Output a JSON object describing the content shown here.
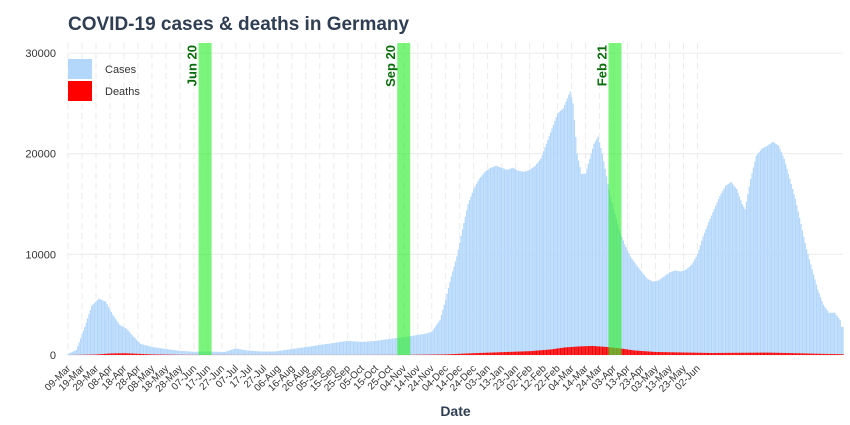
{
  "chart_data": {
    "type": "bar",
    "title": "COVID-19 cases & deaths in Germany",
    "xlabel": "Date",
    "ylabel": "",
    "ylim": [
      0,
      31000
    ],
    "y_ticks": [
      0,
      10000,
      20000,
      30000
    ],
    "x_ticks": [
      "09-Mar",
      "19-Mar",
      "29-Mar",
      "08-Apr",
      "18-Apr",
      "28-Apr",
      "08-May",
      "18-May",
      "28-May",
      "07-Jun",
      "17-Jun",
      "27-Jun",
      "07-Jul",
      "17-Jul",
      "27-Jul",
      "06-Aug",
      "16-Aug",
      "26-Aug",
      "05-Sep",
      "15-Sep",
      "25-Sep",
      "05-Oct",
      "15-Oct",
      "25-Oct",
      "04-Nov",
      "14-Nov",
      "24-Nov",
      "04-Dec",
      "14-Dec",
      "24-Dec",
      "03-Jan",
      "13-Jan",
      "23-Jan",
      "02-Feb",
      "12-Feb",
      "22-Feb",
      "04-Mar",
      "14-Mar",
      "24-Mar",
      "03-Apr",
      "13-Apr",
      "23-Apr",
      "03-May",
      "13-May",
      "23-May",
      "02-Jun"
    ],
    "start_label": "09-Mar",
    "grid": true,
    "legend_position": "top-left",
    "legend": [
      {
        "name": "Cases",
        "color": "#b3d7fb"
      },
      {
        "name": "Deaths",
        "color": "#ff0000"
      }
    ],
    "series": [
      {
        "name": "Cases",
        "color": "#b3d7fb",
        "keypoints": [
          [
            0,
            100
          ],
          [
            6,
            500
          ],
          [
            12,
            2800
          ],
          [
            17,
            4900
          ],
          [
            22,
            5600
          ],
          [
            27,
            5300
          ],
          [
            32,
            4000
          ],
          [
            37,
            3000
          ],
          [
            42,
            2600
          ],
          [
            47,
            1800
          ],
          [
            52,
            1100
          ],
          [
            60,
            800
          ],
          [
            70,
            600
          ],
          [
            80,
            420
          ],
          [
            90,
            320
          ],
          [
            100,
            350
          ],
          [
            112,
            300
          ],
          [
            120,
            650
          ],
          [
            128,
            450
          ],
          [
            138,
            350
          ],
          [
            148,
            350
          ],
          [
            158,
            550
          ],
          [
            168,
            750
          ],
          [
            178,
            950
          ],
          [
            190,
            1200
          ],
          [
            200,
            1400
          ],
          [
            210,
            1300
          ],
          [
            220,
            1400
          ],
          [
            230,
            1600
          ],
          [
            236,
            1700
          ],
          [
            242,
            1800
          ],
          [
            250,
            2000
          ],
          [
            255,
            2100
          ],
          [
            260,
            2300
          ],
          [
            266,
            3500
          ],
          [
            270,
            5500
          ],
          [
            274,
            7800
          ],
          [
            278,
            9800
          ],
          [
            282,
            12500
          ],
          [
            286,
            15000
          ],
          [
            290,
            16500
          ],
          [
            294,
            17500
          ],
          [
            298,
            18200
          ],
          [
            302,
            18600
          ],
          [
            306,
            18800
          ],
          [
            310,
            18600
          ],
          [
            314,
            18400
          ],
          [
            318,
            18600
          ],
          [
            322,
            18300
          ],
          [
            326,
            18200
          ],
          [
            330,
            18400
          ],
          [
            334,
            18800
          ],
          [
            338,
            19500
          ],
          [
            342,
            21000
          ],
          [
            346,
            22500
          ],
          [
            350,
            24000
          ],
          [
            354,
            24500
          ],
          [
            357,
            25500
          ],
          [
            359,
            26200
          ],
          [
            361,
            25000
          ],
          [
            364,
            20000
          ],
          [
            367,
            18000
          ],
          [
            370,
            18000
          ],
          [
            373,
            19500
          ],
          [
            376,
            21000
          ],
          [
            379,
            21700
          ],
          [
            382,
            20000
          ],
          [
            386,
            17000
          ],
          [
            390,
            14500
          ],
          [
            394,
            12500
          ],
          [
            398,
            11000
          ],
          [
            402,
            9800
          ],
          [
            406,
            9000
          ],
          [
            410,
            8300
          ],
          [
            414,
            7600
          ],
          [
            418,
            7300
          ],
          [
            422,
            7400
          ],
          [
            426,
            7800
          ],
          [
            430,
            8200
          ],
          [
            434,
            8400
          ],
          [
            438,
            8300
          ],
          [
            442,
            8500
          ],
          [
            446,
            9000
          ],
          [
            450,
            10000
          ],
          [
            454,
            11800
          ],
          [
            458,
            13200
          ],
          [
            462,
            14500
          ],
          [
            466,
            15800
          ],
          [
            470,
            16800
          ],
          [
            474,
            17200
          ],
          [
            478,
            16500
          ],
          [
            482,
            15000
          ],
          [
            484,
            14500
          ],
          [
            488,
            17500
          ],
          [
            492,
            19800
          ],
          [
            496,
            20500
          ],
          [
            500,
            20800
          ],
          [
            504,
            21200
          ],
          [
            508,
            20800
          ],
          [
            512,
            19500
          ],
          [
            516,
            17500
          ],
          [
            520,
            15500
          ],
          [
            524,
            13000
          ],
          [
            528,
            10500
          ],
          [
            532,
            8500
          ],
          [
            536,
            6500
          ],
          [
            540,
            5000
          ],
          [
            544,
            4200
          ],
          [
            548,
            4200
          ],
          [
            552,
            3500
          ],
          [
            553,
            2800
          ]
        ]
      },
      {
        "name": "Deaths",
        "color": "#ff0000",
        "keypoints": [
          [
            0,
            0
          ],
          [
            20,
            50
          ],
          [
            30,
            150
          ],
          [
            40,
            180
          ],
          [
            50,
            120
          ],
          [
            60,
            60
          ],
          [
            80,
            20
          ],
          [
            120,
            10
          ],
          [
            200,
            8
          ],
          [
            240,
            15
          ],
          [
            270,
            60
          ],
          [
            290,
            180
          ],
          [
            310,
            280
          ],
          [
            330,
            380
          ],
          [
            345,
            550
          ],
          [
            355,
            750
          ],
          [
            365,
            850
          ],
          [
            375,
            900
          ],
          [
            385,
            800
          ],
          [
            395,
            650
          ],
          [
            405,
            450
          ],
          [
            420,
            300
          ],
          [
            440,
            250
          ],
          [
            460,
            200
          ],
          [
            480,
            220
          ],
          [
            500,
            240
          ],
          [
            520,
            180
          ],
          [
            540,
            110
          ],
          [
            553,
            80
          ]
        ]
      }
    ],
    "annotations": [
      {
        "label": "Jun 20",
        "day": 98
      },
      {
        "label": "Sep 20",
        "day": 240
      },
      {
        "label": "Feb 21",
        "day": 391
      }
    ],
    "band_color": "#33ee33"
  }
}
